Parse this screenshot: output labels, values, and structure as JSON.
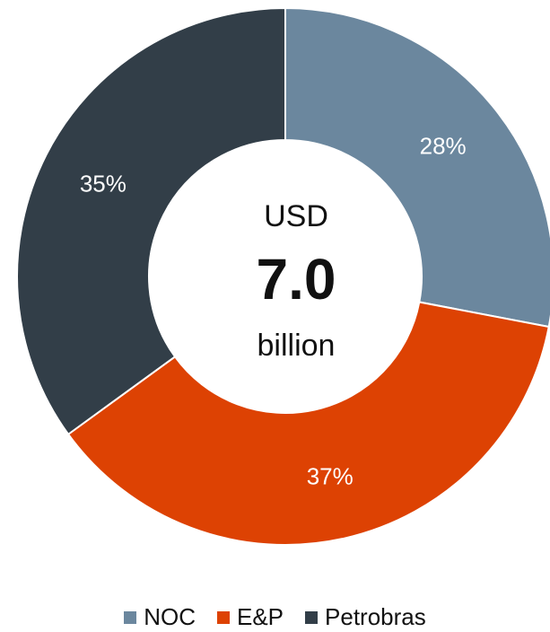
{
  "chart_data": {
    "type": "pie",
    "variant": "donut",
    "categories": [
      "NOC",
      "E&P",
      "Petrobras"
    ],
    "values": [
      28,
      37,
      35
    ],
    "labels": [
      "28%",
      "37%",
      "35%"
    ],
    "colors": [
      "#6b879e",
      "#dd4203",
      "#323e48"
    ],
    "center": {
      "top": "USD",
      "value": "7.0",
      "bottom": "billion"
    },
    "legend": {
      "position": "bottom",
      "entries": [
        "NOC",
        "E&P",
        "Petrobras"
      ]
    }
  }
}
